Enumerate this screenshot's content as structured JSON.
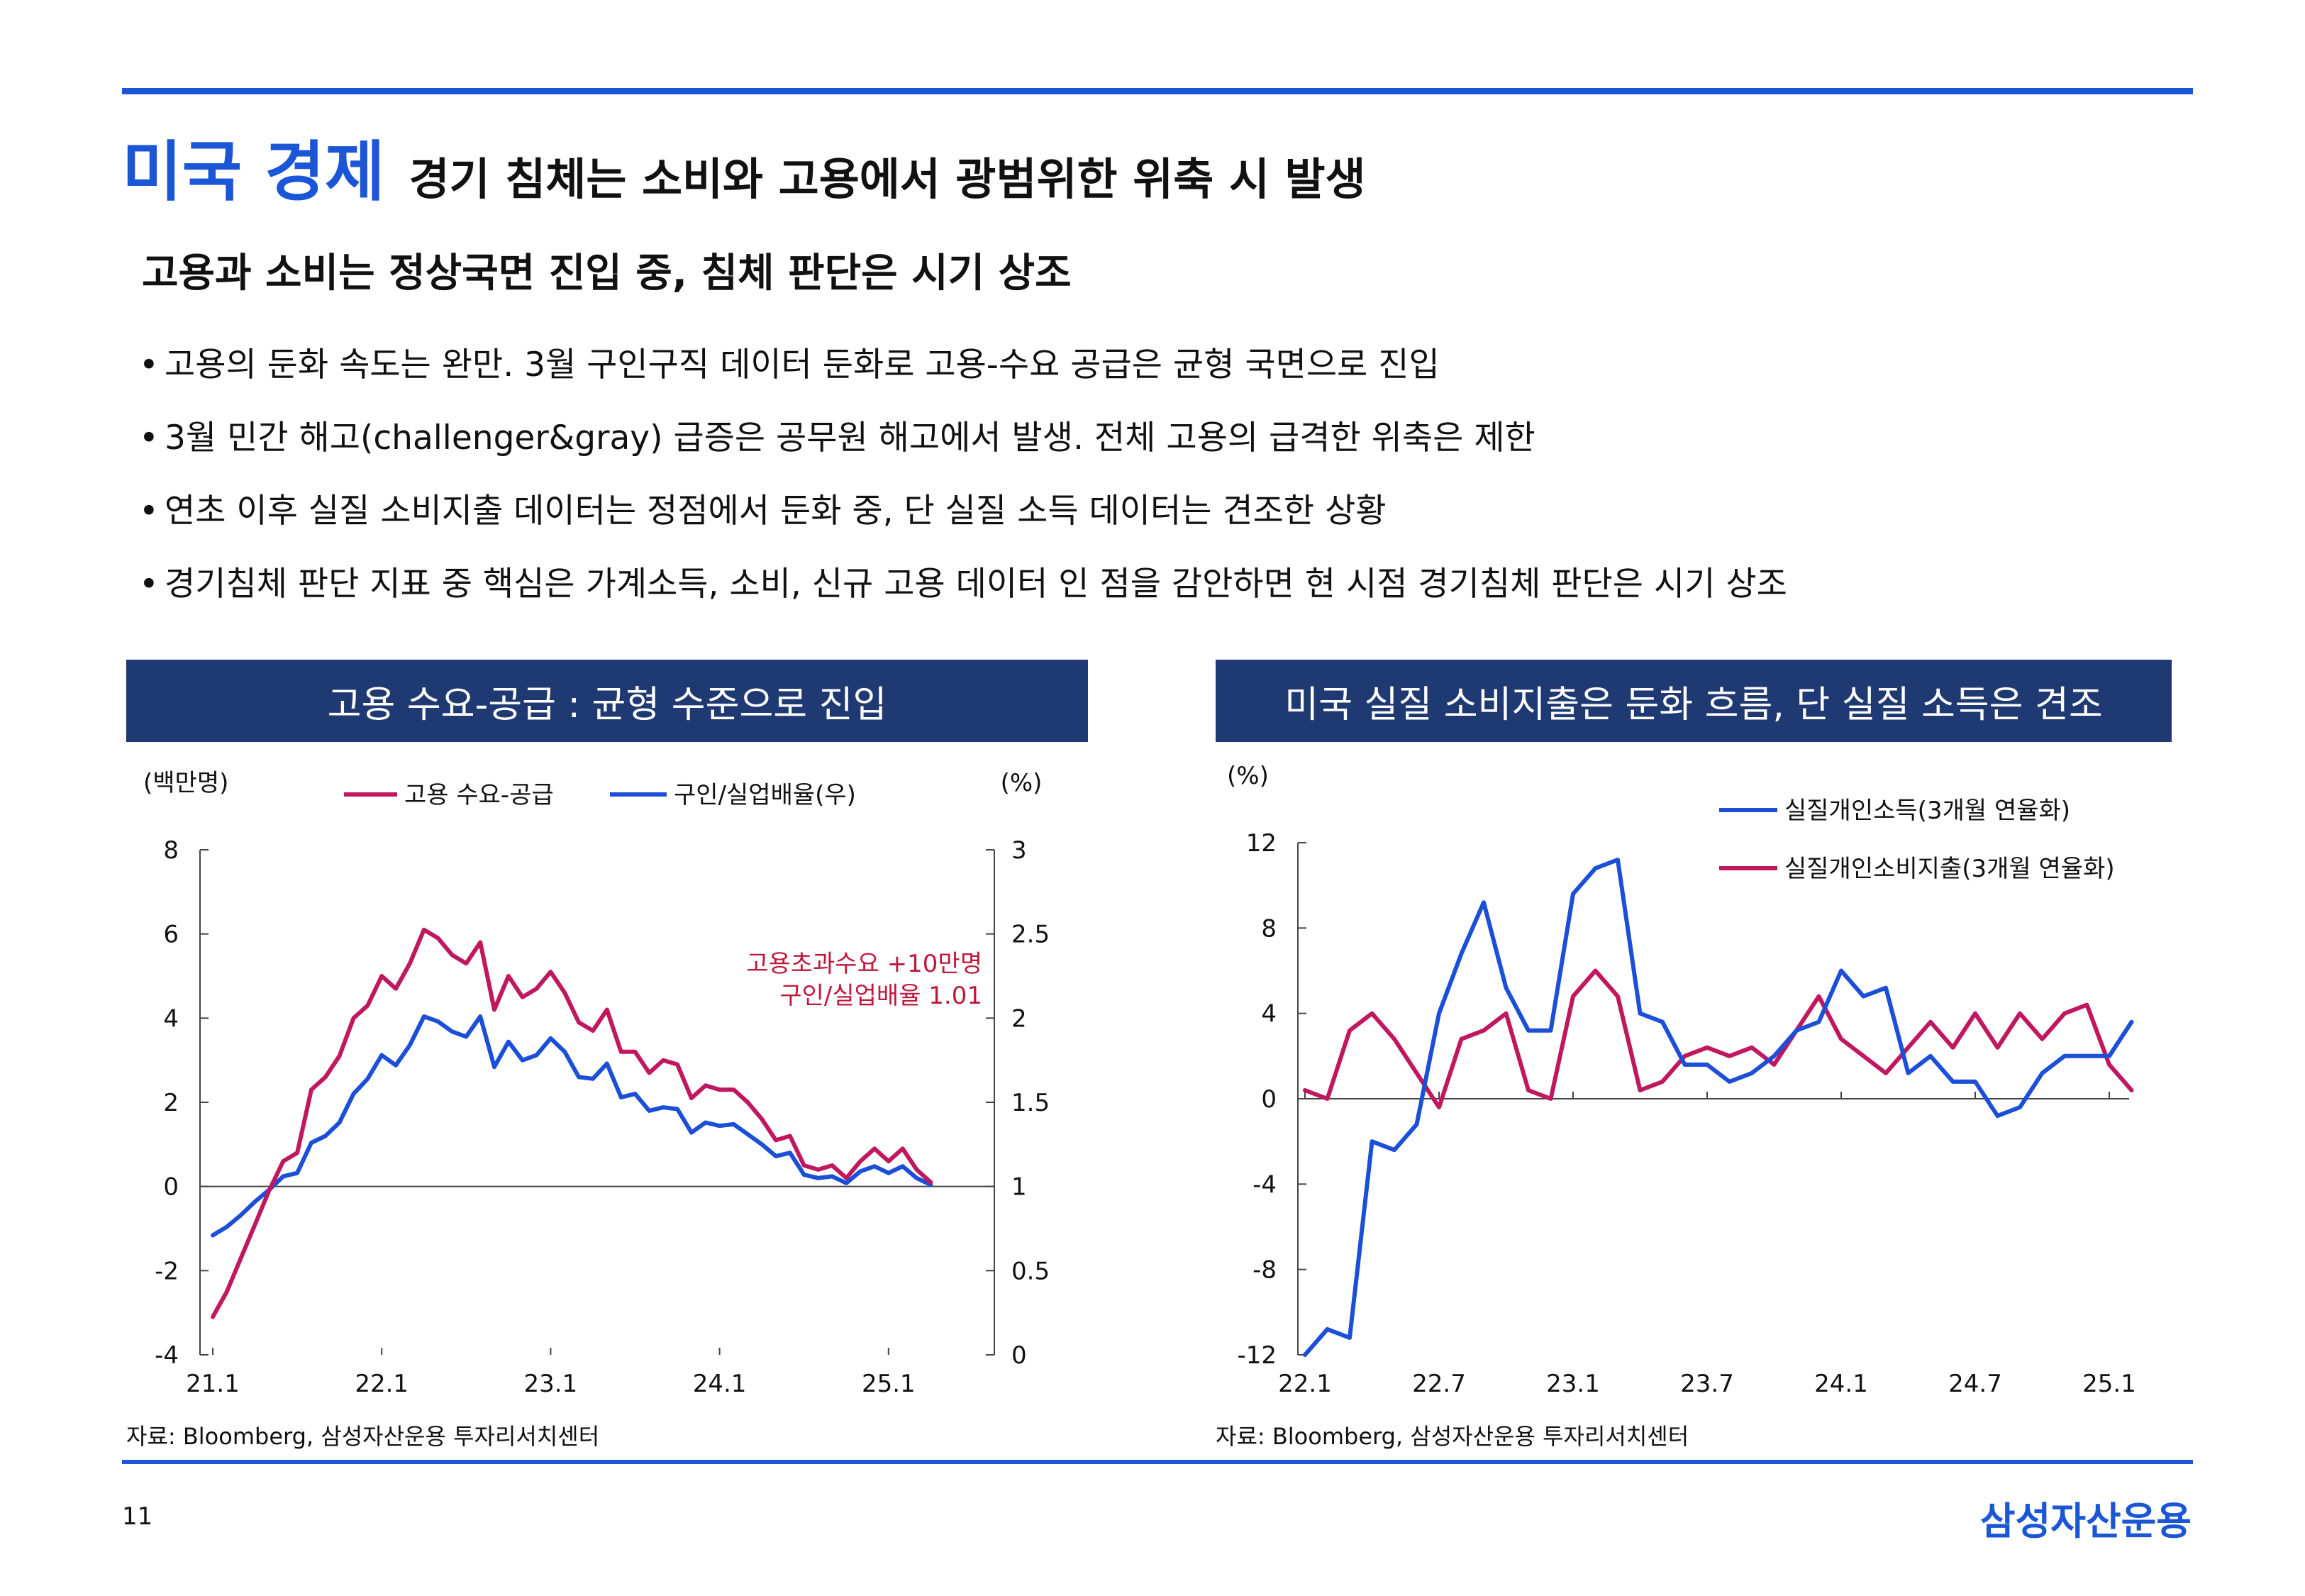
{
  "header": {
    "section_title": "미국 경제",
    "headline": "경기 침체는 소비와 고용에서 광범위한 위축 시 발생"
  },
  "subtitle": "고용과 소비는 정상국면 진입 중, 침체 판단은 시기 상조",
  "bullets": [
    "고용의 둔화 속도는 완만. 3월 구인구직 데이터 둔화로 고용-수요 공급은 균형 국면으로 진입",
    "3월 민간 해고(challenger&gray) 급증은 공무원 해고에서 발생. 전체 고용의 급격한 위축은 제한",
    "연초 이후 실질 소비지출 데이터는 정점에서 둔화 중, 단 실질 소득 데이터는 견조한 상황",
    "경기침체 판단 지표 중 핵심은 가계소득, 소비, 신규 고용 데이터 인 점을 감안하면 현 시점 경기침체 판단은 시기 상조"
  ],
  "bullet_mark": "•",
  "panels": {
    "left_title": "고용 수요-공급 : 균형 수준으로 진입",
    "right_title": "미국 실질 소비지출은 둔화 흐름, 단 실질 소득은 견조"
  },
  "sources": {
    "left": "자료: Bloomberg, 삼성자산운용 투자리서치센터",
    "right": "자료: Bloomberg, 삼성자산운용 투자리서치센터"
  },
  "page_number": "11",
  "logo_text": "삼성자산운용",
  "colors": {
    "accent": "#1a56d6",
    "panel_bg": "#1f3a73",
    "series_magenta": "#c0185f",
    "series_blue": "#1c4fd8",
    "annotation_red": "#c0183c"
  },
  "chart_data": [
    {
      "type": "line",
      "title": "고용 수요-공급 : 균형 수준으로 진입",
      "y_unit_left": "(백만명)",
      "y_unit_right": "(%)",
      "ylim": [
        -4,
        8
      ],
      "y2lim": [
        0,
        3
      ],
      "yticks": [
        "8",
        "6",
        "4",
        "2",
        "0",
        "-2",
        "-4"
      ],
      "y2ticks": [
        "3",
        "2.5",
        "2",
        "1.5",
        "1",
        "0.5",
        "0"
      ],
      "xticks": [
        "21.1",
        "22.1",
        "23.1",
        "24.1",
        "25.1"
      ],
      "x_start": "2021-01",
      "legend_position": "top",
      "annotation": [
        "고용초과수요 +10만명",
        "구인/실업배율 1.01"
      ],
      "series": [
        {
          "name": "고용 수요-공급",
          "axis": "left",
          "color": "#c0185f",
          "values": [
            -3.1,
            -2.5,
            -1.7,
            -0.9,
            -0.1,
            0.6,
            0.8,
            2.3,
            2.6,
            3.1,
            4.0,
            4.3,
            5.0,
            4.7,
            5.3,
            6.1,
            5.9,
            5.5,
            5.3,
            5.8,
            4.2,
            5.0,
            4.5,
            4.7,
            5.1,
            4.6,
            3.9,
            3.7,
            4.2,
            3.2,
            3.2,
            2.7,
            3.0,
            2.9,
            2.1,
            2.4,
            2.3,
            2.3,
            2.0,
            1.6,
            1.1,
            1.2,
            0.5,
            0.4,
            0.5,
            0.2,
            0.6,
            0.9,
            0.6,
            0.9,
            0.4,
            0.1
          ]
        },
        {
          "name": "구인/실업배율(우)",
          "axis": "right",
          "color": "#1c4fd8",
          "values": [
            0.71,
            0.76,
            0.83,
            0.91,
            0.98,
            1.06,
            1.08,
            1.26,
            1.3,
            1.38,
            1.55,
            1.64,
            1.78,
            1.72,
            1.84,
            2.01,
            1.98,
            1.92,
            1.89,
            2.01,
            1.71,
            1.86,
            1.75,
            1.78,
            1.88,
            1.8,
            1.65,
            1.64,
            1.73,
            1.53,
            1.55,
            1.45,
            1.47,
            1.46,
            1.32,
            1.38,
            1.36,
            1.37,
            1.31,
            1.25,
            1.18,
            1.2,
            1.07,
            1.05,
            1.06,
            1.02,
            1.09,
            1.12,
            1.08,
            1.12,
            1.05,
            1.01
          ]
        }
      ]
    },
    {
      "type": "line",
      "title": "미국 실질 소비지출은 둔화 흐름, 단 실질 소득은 견조",
      "y_unit": "(%)",
      "ylim": [
        -12,
        12
      ],
      "yticks": [
        "12",
        "8",
        "4",
        "0",
        "-4",
        "-8",
        "-12"
      ],
      "xticks": [
        "22.1",
        "22.7",
        "23.1",
        "23.7",
        "24.1",
        "24.7",
        "25.1"
      ],
      "x_start": "2022-01",
      "legend_position": "top-right",
      "series": [
        {
          "name": "실질개인소득(3개월 연율화)",
          "color": "#1c4fd8",
          "values": [
            -12.0,
            -10.8,
            -11.2,
            -2.0,
            -2.4,
            -1.2,
            4.0,
            6.8,
            9.2,
            5.2,
            3.2,
            3.2,
            9.6,
            10.8,
            11.2,
            4.0,
            3.6,
            1.6,
            1.6,
            0.8,
            1.2,
            2.0,
            3.2,
            3.6,
            6.0,
            4.8,
            5.2,
            1.2,
            2.0,
            0.8,
            0.8,
            -0.8,
            -0.4,
            1.2,
            2.0,
            2.0,
            2.0,
            3.6
          ]
        },
        {
          "name": "실질개인소비지출(3개월 연율화)",
          "color": "#c0185f",
          "values": [
            0.4,
            0.0,
            3.2,
            4.0,
            2.8,
            1.2,
            -0.4,
            2.8,
            3.2,
            4.0,
            0.4,
            0.0,
            4.8,
            6.0,
            4.8,
            0.4,
            0.8,
            2.0,
            2.4,
            2.0,
            2.4,
            1.6,
            3.2,
            4.8,
            2.8,
            2.0,
            1.2,
            2.4,
            3.6,
            2.4,
            4.0,
            2.4,
            4.0,
            2.8,
            4.0,
            4.4,
            1.6,
            0.4
          ]
        }
      ]
    }
  ]
}
